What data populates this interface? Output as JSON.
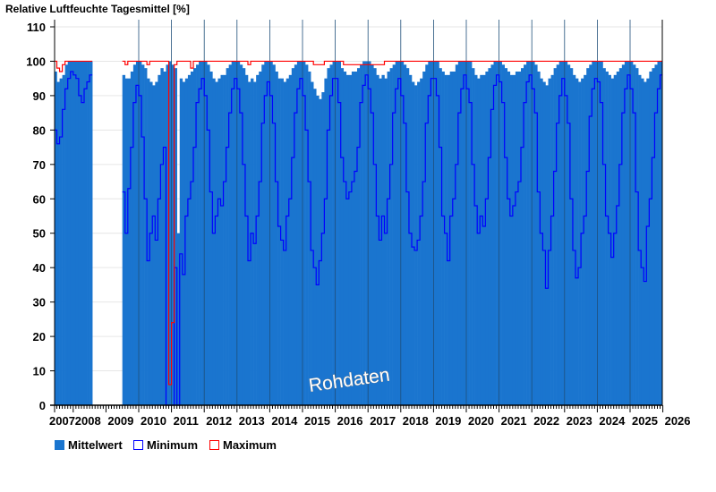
{
  "chart_data": {
    "type": "bar",
    "title": "Relative Luftfeuchte Tagesmittel [%]",
    "xlabel": "",
    "ylabel": "Relative Luftfeuchte Tagesmittel [%]",
    "ylim": [
      0,
      110
    ],
    "yticks": [
      0,
      10,
      20,
      30,
      40,
      50,
      60,
      70,
      80,
      90,
      100,
      110
    ],
    "xlim": [
      2007.42,
      2026.0
    ],
    "xticks": [
      "2007",
      "2008",
      "2009",
      "2010",
      "2011",
      "2012",
      "2013",
      "2014",
      "2015",
      "2016",
      "2017",
      "2018",
      "2019",
      "2020",
      "2021",
      "2022",
      "2023",
      "2024",
      "2025",
      "2026"
    ],
    "grid": true,
    "legend_position": "bottom-left",
    "watermark": "Rohdaten",
    "resolution": "monthly (approximate, one value per month starting January of each year)",
    "years": [
      2007,
      2008,
      2009,
      2010,
      2011,
      2012,
      2013,
      2014,
      2015,
      2016,
      2017,
      2018,
      2019,
      2020,
      2021,
      2022,
      2023,
      2024,
      2025
    ],
    "series": [
      {
        "name": "Mittelwert",
        "color": "#1a75cf",
        "values": [
          [
            null,
            null,
            null,
            null,
            null,
            97,
            94,
            95,
            96,
            99,
            100,
            100
          ],
          [
            100,
            100,
            100,
            100,
            100,
            100,
            100,
            null,
            null,
            null,
            null,
            null
          ],
          [
            null,
            null,
            null,
            null,
            null,
            null,
            96,
            95,
            95,
            97,
            99,
            100
          ],
          [
            100,
            99,
            98,
            95,
            94,
            93,
            94,
            96,
            98,
            97,
            99,
            100
          ],
          [
            99,
            98,
            50,
            95,
            94,
            95,
            96,
            97,
            98,
            99,
            100,
            100
          ],
          [
            100,
            99,
            97,
            95,
            94,
            95,
            96,
            96,
            98,
            99,
            100,
            100
          ],
          [
            100,
            99,
            98,
            96,
            94,
            95,
            94,
            96,
            97,
            99,
            100,
            100
          ],
          [
            100,
            99,
            97,
            95,
            95,
            94,
            95,
            96,
            98,
            99,
            100,
            100
          ],
          [
            100,
            99,
            97,
            94,
            92,
            90,
            89,
            91,
            95,
            98,
            99,
            100
          ],
          [
            100,
            100,
            98,
            97,
            96,
            96,
            97,
            97,
            98,
            99,
            100,
            100
          ],
          [
            100,
            99,
            98,
            96,
            95,
            96,
            95,
            97,
            98,
            99,
            100,
            100
          ],
          [
            100,
            99,
            98,
            96,
            94,
            93,
            94,
            95,
            97,
            99,
            100,
            100
          ],
          [
            100,
            100,
            98,
            97,
            96,
            96,
            97,
            97,
            99,
            100,
            100,
            100
          ],
          [
            100,
            100,
            98,
            96,
            95,
            96,
            96,
            97,
            98,
            99,
            100,
            100
          ],
          [
            100,
            99,
            98,
            97,
            96,
            96,
            97,
            97,
            98,
            99,
            100,
            100
          ],
          [
            100,
            99,
            97,
            95,
            94,
            93,
            95,
            96,
            98,
            99,
            100,
            100
          ],
          [
            100,
            99,
            98,
            96,
            95,
            94,
            95,
            96,
            98,
            99,
            100,
            100
          ],
          [
            100,
            100,
            98,
            97,
            96,
            95,
            96,
            97,
            98,
            99,
            100,
            100
          ],
          [
            100,
            99,
            98,
            96,
            95,
            94,
            95,
            97,
            98,
            99,
            100,
            100
          ]
        ]
      },
      {
        "name": "Minimum",
        "color": "#0000ff",
        "values": [
          [
            null,
            null,
            null,
            null,
            null,
            80,
            76,
            78,
            86,
            92,
            95,
            97
          ],
          [
            96,
            95,
            90,
            88,
            92,
            94,
            96,
            null,
            null,
            null,
            null,
            null
          ],
          [
            null,
            null,
            null,
            null,
            null,
            null,
            62,
            50,
            63,
            75,
            88,
            93
          ],
          [
            90,
            78,
            60,
            42,
            50,
            55,
            48,
            60,
            70,
            75,
            0,
            0
          ],
          [
            0,
            40,
            0,
            44,
            38,
            55,
            60,
            65,
            75,
            88,
            92,
            95
          ],
          [
            90,
            80,
            62,
            50,
            55,
            60,
            58,
            65,
            75,
            85,
            92,
            95
          ],
          [
            92,
            85,
            70,
            55,
            42,
            50,
            47,
            55,
            65,
            82,
            90,
            94
          ],
          [
            90,
            82,
            65,
            52,
            48,
            45,
            55,
            60,
            72,
            85,
            92,
            95
          ],
          [
            90,
            80,
            65,
            45,
            40,
            35,
            42,
            50,
            60,
            80,
            90,
            95
          ],
          [
            95,
            88,
            72,
            65,
            60,
            62,
            65,
            68,
            75,
            88,
            93,
            96
          ],
          [
            92,
            85,
            70,
            55,
            48,
            55,
            50,
            60,
            70,
            85,
            92,
            95
          ],
          [
            90,
            82,
            62,
            50,
            46,
            45,
            48,
            55,
            65,
            82,
            90,
            95
          ],
          [
            95,
            90,
            75,
            55,
            50,
            42,
            55,
            60,
            70,
            85,
            92,
            96
          ],
          [
            92,
            88,
            70,
            58,
            50,
            55,
            52,
            60,
            72,
            86,
            93,
            96
          ],
          [
            94,
            88,
            72,
            60,
            55,
            58,
            62,
            65,
            75,
            88,
            94,
            96
          ],
          [
            92,
            85,
            62,
            50,
            45,
            34,
            45,
            55,
            68,
            82,
            90,
            95
          ],
          [
            90,
            82,
            60,
            45,
            37,
            40,
            50,
            55,
            68,
            84,
            92,
            95
          ],
          [
            94,
            88,
            70,
            55,
            50,
            43,
            50,
            58,
            70,
            85,
            92,
            96
          ],
          [
            92,
            85,
            62,
            45,
            40,
            36,
            52,
            60,
            72,
            85,
            92,
            96
          ]
        ]
      },
      {
        "name": "Maximum",
        "color": "#ff0000",
        "values": [
          [
            null,
            null,
            null,
            null,
            null,
            100,
            98,
            97,
            99,
            100,
            100,
            100
          ],
          [
            100,
            100,
            100,
            100,
            100,
            100,
            100,
            null,
            null,
            null,
            null,
            null
          ],
          [
            null,
            null,
            null,
            null,
            null,
            null,
            100,
            99,
            100,
            100,
            100,
            100
          ],
          [
            100,
            100,
            100,
            99,
            100,
            100,
            100,
            100,
            100,
            100,
            100,
            6
          ],
          [
            24,
            99,
            100,
            100,
            100,
            100,
            100,
            98,
            100,
            100,
            100,
            100
          ],
          [
            100,
            100,
            100,
            100,
            100,
            100,
            100,
            100,
            100,
            100,
            100,
            100
          ],
          [
            100,
            100,
            100,
            100,
            99,
            100,
            100,
            100,
            100,
            100,
            100,
            100
          ],
          [
            100,
            100,
            100,
            100,
            100,
            100,
            100,
            100,
            100,
            100,
            100,
            100
          ],
          [
            100,
            100,
            100,
            100,
            99,
            99,
            99,
            99,
            100,
            100,
            100,
            100
          ],
          [
            100,
            100,
            100,
            99,
            99,
            99,
            99,
            99,
            99,
            99,
            99,
            99
          ],
          [
            99,
            99,
            99,
            99,
            99,
            99,
            100,
            100,
            100,
            100,
            100,
            100
          ],
          [
            100,
            100,
            100,
            100,
            100,
            100,
            100,
            100,
            100,
            100,
            100,
            100
          ],
          [
            100,
            100,
            100,
            100,
            100,
            100,
            100,
            100,
            100,
            100,
            100,
            100
          ],
          [
            100,
            100,
            100,
            100,
            100,
            100,
            100,
            100,
            100,
            100,
            100,
            100
          ],
          [
            100,
            100,
            100,
            100,
            100,
            100,
            100,
            100,
            100,
            100,
            100,
            100
          ],
          [
            100,
            100,
            100,
            100,
            100,
            100,
            100,
            100,
            100,
            100,
            100,
            100
          ],
          [
            100,
            100,
            100,
            100,
            100,
            100,
            100,
            100,
            100,
            100,
            100,
            100
          ],
          [
            100,
            100,
            100,
            100,
            100,
            100,
            100,
            100,
            100,
            100,
            100,
            100
          ],
          [
            100,
            100,
            100,
            100,
            100,
            100,
            100,
            100,
            100,
            100,
            100,
            100
          ]
        ]
      }
    ],
    "legend": [
      "Mittelwert",
      "Minimum",
      "Maximum"
    ]
  }
}
